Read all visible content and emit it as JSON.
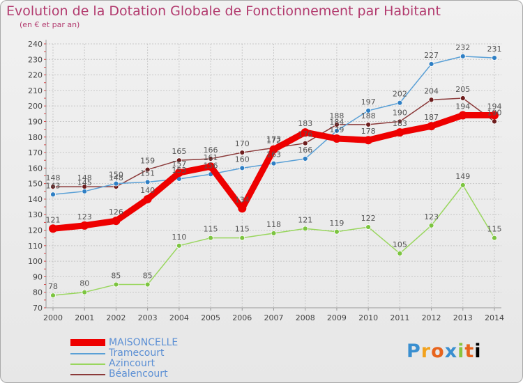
{
  "header": {
    "title": "Evolution de la Dotation Globale de Fonctionnement par Habitant",
    "subtitle": "(en € et par an)"
  },
  "brand": "Proxiti",
  "colors": {
    "title": "#b23a6e",
    "axis": "#999999",
    "grid": "#c8c8c8"
  },
  "chart_data": {
    "type": "line",
    "title": "Evolution de la Dotation Globale de Fonctionnement par Habitant",
    "subtitle": "(en € et par an)",
    "xlabel": "",
    "ylabel": "",
    "ylim": [
      70,
      240
    ],
    "yticks": [
      70,
      80,
      90,
      100,
      110,
      120,
      130,
      140,
      150,
      160,
      170,
      180,
      190,
      200,
      210,
      220,
      230,
      240
    ],
    "x": [
      "2000",
      "2001",
      "2002",
      "2003",
      "2004",
      "2005",
      "2006",
      "2007",
      "2008",
      "2009",
      "2010",
      "2011",
      "2012",
      "2013",
      "2014"
    ],
    "grid": true,
    "legend_position": "bottom-left",
    "series": [
      {
        "name": "MAISONCELLE",
        "color": "#ee0000",
        "marker": "#ee0000",
        "width": "thick",
        "values": [
          121,
          123,
          126,
          140,
          157,
          161,
          134,
          172,
          183,
          179,
          178,
          183,
          187,
          194,
          194
        ]
      },
      {
        "name": "Tramecourt",
        "color": "#5aa0d6",
        "marker": "#2f7fc4",
        "width": "thin",
        "values": [
          143,
          145,
          150,
          151,
          153,
          156,
          160,
          163,
          166,
          184,
          197,
          202,
          227,
          232,
          231
        ]
      },
      {
        "name": "Azincourt",
        "color": "#99d65e",
        "marker": "#7cc440",
        "width": "thin",
        "values": [
          78,
          80,
          85,
          85,
          110,
          115,
          115,
          118,
          121,
          119,
          122,
          105,
          123,
          149,
          115
        ]
      },
      {
        "name": "Béalencourt",
        "color": "#8b3a3a",
        "marker": "#6e1e1e",
        "width": "thin",
        "values": [
          148,
          148,
          148,
          159,
          165,
          166,
          170,
          173,
          176,
          188,
          188,
          190,
          204,
          205,
          190
        ]
      }
    ]
  }
}
